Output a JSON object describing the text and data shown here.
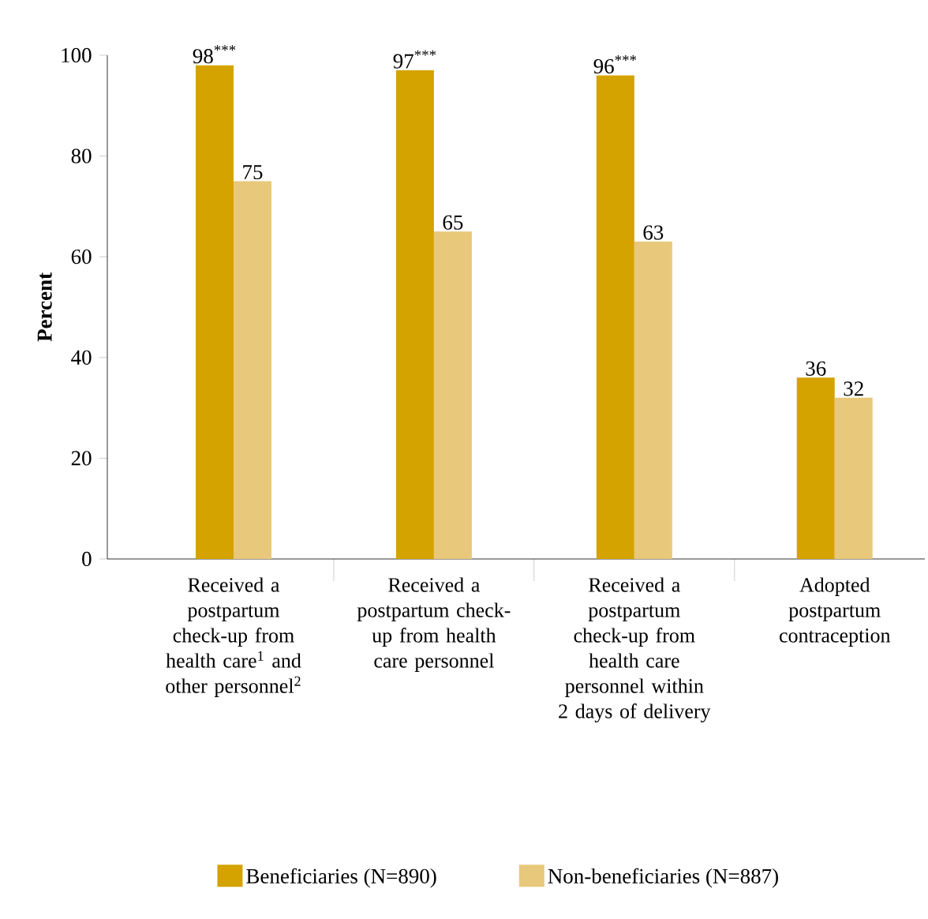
{
  "chart_data": {
    "type": "bar",
    "ylabel": "Percent",
    "categories": [
      "Received a postpartum check-up from health care$^{1}$ and other personnel$^{2}$",
      "Received a postpartum check-up from health care personnel",
      "Received a postpartum check-up from health care personnel within 2 days of delivery",
      "Adopted postpartum contraception"
    ],
    "series": [
      {
        "name": "Beneficiaries (N=890)",
        "color": "#d4a300",
        "values": [
          98,
          97,
          96,
          36
        ],
        "value_labels": [
          "98$^{***}$",
          "97$^{***}$",
          "96$^{***}$",
          "36"
        ]
      },
      {
        "name": "Non-beneficiaries (N=887)",
        "color": "#e8c87a",
        "values": [
          75,
          65,
          63,
          32
        ],
        "value_labels": [
          "75",
          "65",
          "63",
          "32"
        ]
      }
    ],
    "ylim": [
      0,
      100
    ],
    "yticks": [
      0,
      20,
      40,
      60,
      80,
      100
    ],
    "grid": false,
    "legend": "bottom"
  }
}
